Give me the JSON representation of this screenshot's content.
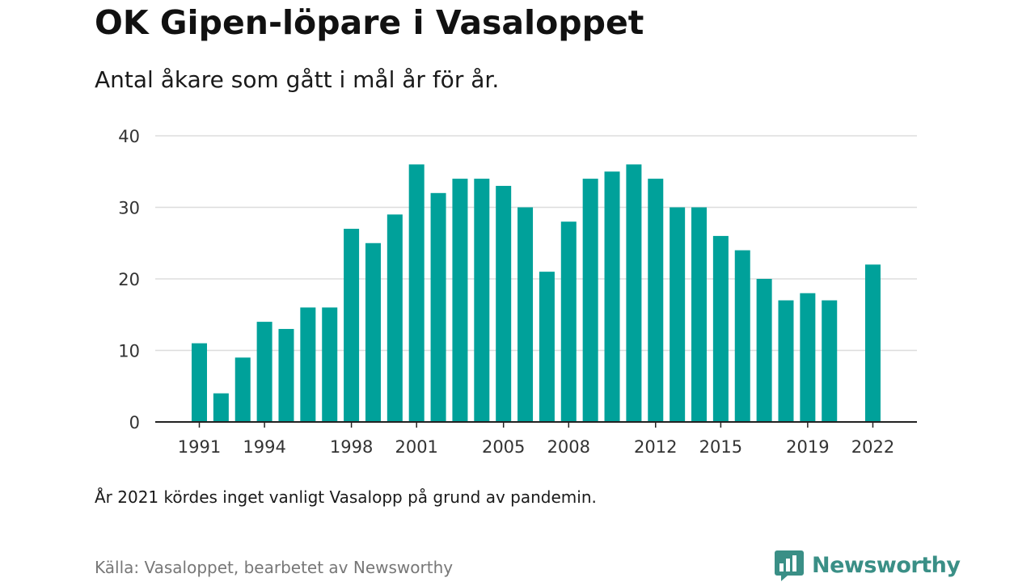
{
  "title": "OK Gipen-löpare i Vasaloppet",
  "subtitle": "Antal åkare som gått i mål år för år.",
  "note": "År 2021 kördes inget vanligt Vasalopp på grund av pandemin.",
  "source": "Källa: Vasaloppet, bearbetet av Newsworthy",
  "brand": {
    "name": "Newsworthy",
    "icon": "newsworthy-logo-icon",
    "color": "#3a8f86"
  },
  "colors": {
    "bar": "#00a19a",
    "grid": "#dddddd",
    "axis": "#222222",
    "tick_text": "#333333"
  },
  "chart_data": {
    "type": "bar",
    "categories": [
      1991,
      1992,
      1993,
      1994,
      1995,
      1996,
      1997,
      1998,
      1999,
      2000,
      2001,
      2002,
      2003,
      2004,
      2005,
      2006,
      2007,
      2008,
      2009,
      2010,
      2011,
      2012,
      2013,
      2014,
      2015,
      2016,
      2017,
      2018,
      2019,
      2020,
      2021,
      2022
    ],
    "values": [
      11,
      4,
      9,
      14,
      13,
      16,
      16,
      27,
      25,
      29,
      36,
      32,
      34,
      34,
      33,
      30,
      21,
      28,
      34,
      35,
      36,
      34,
      30,
      30,
      26,
      24,
      20,
      17,
      18,
      17,
      null,
      22
    ],
    "x_tick_labels": [
      "1991",
      "1994",
      "1998",
      "2001",
      "2005",
      "2008",
      "2012",
      "2015",
      "2019",
      "2022"
    ],
    "y_ticks": [
      0,
      10,
      20,
      30,
      40
    ],
    "ylim": [
      0,
      40
    ],
    "grid": true,
    "title": "OK Gipen-löpare i Vasaloppet",
    "subtitle": "Antal åkare som gått i mål år för år."
  }
}
